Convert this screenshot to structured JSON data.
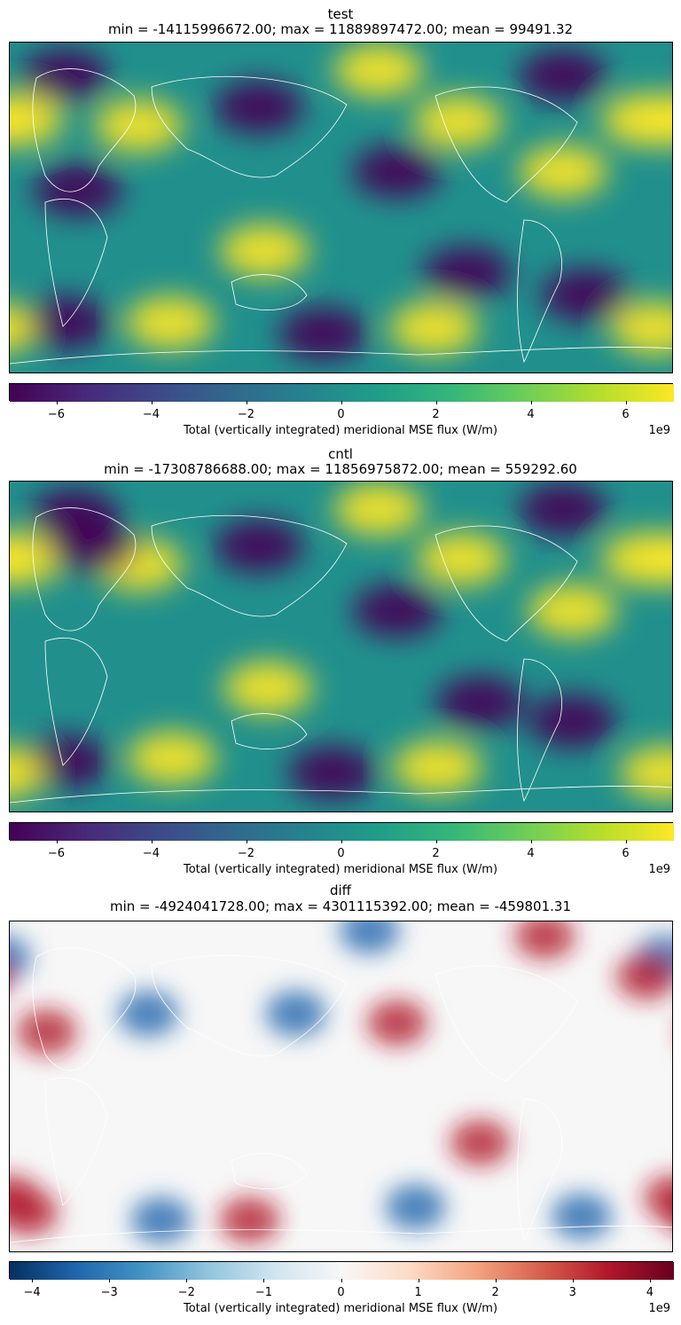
{
  "panels": [
    {
      "name": "test",
      "stats": "min = -14115996672.00; max = 11889897472.00; mean = 99491.32",
      "colormap": "viridis",
      "colorbar": {
        "label": "Total (vertically integrated) meridional MSE flux (W/m)",
        "exponent": "1e9",
        "ticks": [
          "−6",
          "−4",
          "−2",
          "0",
          "2",
          "4",
          "6"
        ],
        "tick_values": [
          -6,
          -4,
          -2,
          0,
          2,
          4,
          6
        ],
        "range": [
          -7,
          7
        ]
      }
    },
    {
      "name": "cntl",
      "stats": "min = -17308786688.00; max = 11856975872.00; mean = 559292.60",
      "colormap": "viridis",
      "colorbar": {
        "label": "Total (vertically integrated) meridional MSE flux (W/m)",
        "exponent": "1e9",
        "ticks": [
          "−6",
          "−4",
          "−2",
          "0",
          "2",
          "4",
          "6"
        ],
        "tick_values": [
          -6,
          -4,
          -2,
          0,
          2,
          4,
          6
        ],
        "range": [
          -7,
          7
        ]
      }
    },
    {
      "name": "diff",
      "stats": "min = -4924041728.00; max = 4301115392.00; mean = -459801.31",
      "colormap": "RdBu_r",
      "colorbar": {
        "label": "Total (vertically integrated) meridional MSE flux (W/m)",
        "exponent": "1e9",
        "ticks": [
          "−4",
          "−3",
          "−2",
          "−1",
          "0",
          "1",
          "2",
          "3",
          "4"
        ],
        "tick_values": [
          -4,
          -3,
          -2,
          -1,
          0,
          1,
          2,
          3,
          4
        ],
        "range": [
          -4.3,
          4.3
        ]
      }
    }
  ],
  "chart_data": [
    {
      "type": "heatmap",
      "title": "test",
      "subtitle": "min = -14115996672.00; max = 11889897472.00; mean = 99491.32",
      "colorbar_label": "Total (vertically integrated) meridional MSE flux (W/m)",
      "colorbar_range": [
        -7000000000.0,
        7000000000.0
      ],
      "colormap": "viridis",
      "features": [
        {
          "kind": "high",
          "lon": 200,
          "lat": 75
        },
        {
          "kind": "low",
          "lon": 30,
          "lat": 72
        },
        {
          "kind": "low",
          "lon": 135,
          "lat": 55
        },
        {
          "kind": "high",
          "lon": 243,
          "lat": 47
        },
        {
          "kind": "low",
          "lon": 300,
          "lat": 72
        },
        {
          "kind": "high",
          "lon": 5,
          "lat": 48
        },
        {
          "kind": "low",
          "lon": 210,
          "lat": 20
        },
        {
          "kind": "high",
          "lon": 345,
          "lat": 48
        },
        {
          "kind": "high",
          "lon": 70,
          "lat": 45
        },
        {
          "kind": "low",
          "lon": 37,
          "lat": 10
        },
        {
          "kind": "high",
          "lon": 300,
          "lat": 20
        },
        {
          "kind": "low",
          "lon": 170,
          "lat": -68
        },
        {
          "kind": "low",
          "lon": 30,
          "lat": -62
        },
        {
          "kind": "high",
          "lon": 87,
          "lat": -62
        },
        {
          "kind": "high",
          "lon": 230,
          "lat": -65
        },
        {
          "kind": "high",
          "lon": 350,
          "lat": -65
        },
        {
          "kind": "low",
          "lon": 312,
          "lat": -47
        },
        {
          "kind": "low",
          "lon": 248,
          "lat": -35
        },
        {
          "kind": "high",
          "lon": 138,
          "lat": -23
        }
      ]
    },
    {
      "type": "heatmap",
      "title": "cntl",
      "subtitle": "min = -17308786688.00; max = 11856975872.00; mean = 559292.60",
      "colorbar_label": "Total (vertically integrated) meridional MSE flux (W/m)",
      "colorbar_range": [
        -7000000000.0,
        7000000000.0
      ],
      "colormap": "viridis",
      "features": [
        {
          "kind": "high",
          "lon": 200,
          "lat": 75
        },
        {
          "kind": "low",
          "lon": 35,
          "lat": 72
        },
        {
          "kind": "low",
          "lon": 135,
          "lat": 55
        },
        {
          "kind": "high",
          "lon": 245,
          "lat": 48
        },
        {
          "kind": "low",
          "lon": 300,
          "lat": 75
        },
        {
          "kind": "high",
          "lon": 5,
          "lat": 48
        },
        {
          "kind": "low",
          "lon": 210,
          "lat": 20
        },
        {
          "kind": "high",
          "lon": 345,
          "lat": 48
        },
        {
          "kind": "high",
          "lon": 70,
          "lat": 45
        },
        {
          "kind": "low",
          "lon": 45,
          "lat": 55
        },
        {
          "kind": "high",
          "lon": 305,
          "lat": 20
        },
        {
          "kind": "low",
          "lon": 175,
          "lat": -68
        },
        {
          "kind": "low",
          "lon": 30,
          "lat": -62
        },
        {
          "kind": "high",
          "lon": 88,
          "lat": -60
        },
        {
          "kind": "high",
          "lon": 232,
          "lat": -65
        },
        {
          "kind": "high",
          "lon": 355,
          "lat": -68
        },
        {
          "kind": "low",
          "lon": 305,
          "lat": -40
        },
        {
          "kind": "low",
          "lon": 255,
          "lat": -30
        },
        {
          "kind": "high",
          "lon": 140,
          "lat": -22
        }
      ]
    },
    {
      "type": "heatmap",
      "title": "diff",
      "subtitle": "min = -4924041728.00; max = 4301115392.00; mean = -459801.31",
      "colorbar_label": "Total (vertically integrated) meridional MSE flux (W/m)",
      "colorbar_range": [
        -4300000000.0,
        4300000000.0
      ],
      "colormap": "RdBu_r",
      "features": [
        {
          "kind": "high",
          "lon": 290,
          "lat": 82
        },
        {
          "kind": "low",
          "lon": 195,
          "lat": 85
        },
        {
          "kind": "low",
          "lon": -5,
          "lat": 70
        },
        {
          "kind": "high",
          "lon": 345,
          "lat": 60
        },
        {
          "kind": "low",
          "lon": 155,
          "lat": 40
        },
        {
          "kind": "high",
          "lon": 210,
          "lat": 35
        },
        {
          "kind": "low",
          "lon": 75,
          "lat": 40
        },
        {
          "kind": "high",
          "lon": 20,
          "lat": 30
        },
        {
          "kind": "high",
          "lon": 255,
          "lat": -30
        },
        {
          "kind": "low",
          "lon": 220,
          "lat": -65
        },
        {
          "kind": "high",
          "lon": 130,
          "lat": -72
        },
        {
          "kind": "low",
          "lon": 82,
          "lat": -72
        },
        {
          "kind": "high",
          "lon": 10,
          "lat": -68
        },
        {
          "kind": "low",
          "lon": 310,
          "lat": -70
        },
        {
          "kind": "high",
          "lon": 360,
          "lat": -60
        }
      ]
    }
  ]
}
